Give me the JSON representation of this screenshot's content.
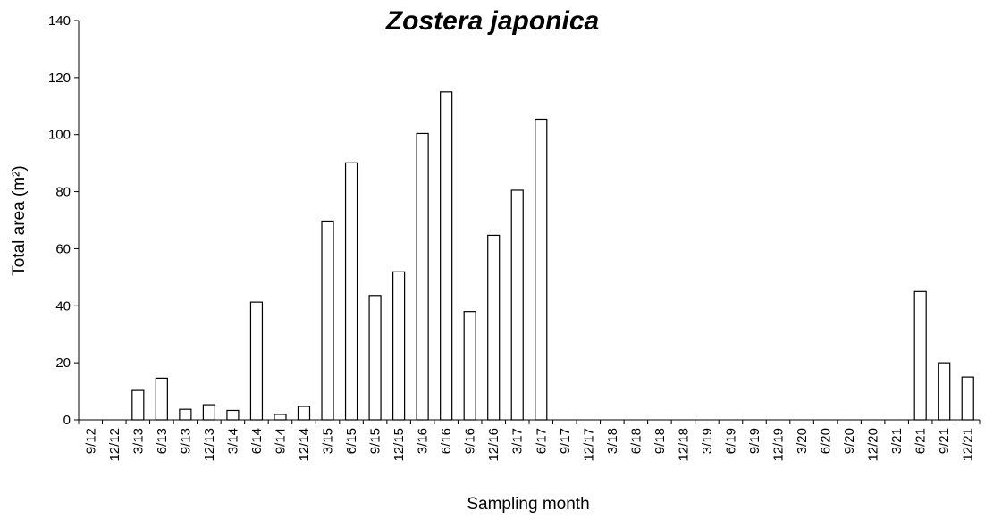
{
  "chart_data": {
    "type": "bar",
    "title": "Zostera japonica",
    "xlabel": "Sampling month",
    "ylabel": "Total area (m²)",
    "ylim": [
      0,
      140
    ],
    "yticks": [
      0,
      20,
      40,
      60,
      80,
      100,
      120,
      140
    ],
    "categories": [
      "9/12",
      "12/12",
      "3/13",
      "6/13",
      "9/13",
      "12/13",
      "3/14",
      "6/14",
      "9/14",
      "12/14",
      "3/15",
      "6/15",
      "9/15",
      "12/15",
      "3/16",
      "6/16",
      "9/16",
      "12/16",
      "3/17",
      "6/17",
      "9/17",
      "12/17",
      "3/18",
      "6/18",
      "9/18",
      "12/18",
      "3/19",
      "6/19",
      "9/19",
      "12/19",
      "3/20",
      "6/20",
      "9/20",
      "12/20",
      "3/21",
      "6/21",
      "9/21",
      "12/21"
    ],
    "values": [
      0,
      0,
      10.3,
      14.6,
      3.7,
      5.3,
      3.3,
      41.3,
      1.9,
      4.7,
      69.7,
      90.1,
      43.6,
      51.9,
      100.4,
      115,
      38,
      64.7,
      80.5,
      105.4,
      0,
      0,
      0,
      0,
      0,
      0,
      0,
      0,
      0,
      0,
      0,
      0,
      0,
      0,
      0,
      45,
      20,
      15
    ],
    "grid": false,
    "legend": "none",
    "colors": {
      "bar_fill": "#ffffff",
      "bar_stroke": "#000000",
      "axis": "#000000"
    }
  }
}
